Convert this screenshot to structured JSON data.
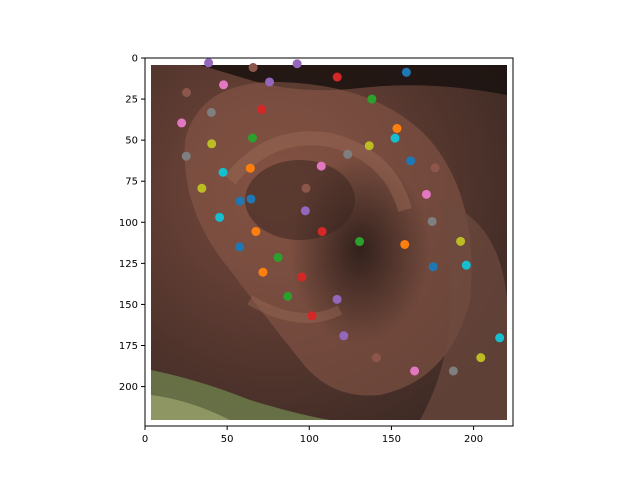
{
  "chart_data": {
    "type": "scatter",
    "xlim": [
      0,
      224
    ],
    "ylim": [
      224,
      0
    ],
    "x_ticks": [
      0,
      50,
      100,
      150,
      200
    ],
    "y_ticks": [
      0,
      25,
      50,
      75,
      100,
      125,
      150,
      175,
      200
    ],
    "grid": false,
    "legend": "none",
    "background_image": "ear-photo",
    "points": [
      {
        "x": 38.7,
        "y": 2.9,
        "color": "#9467bd"
      },
      {
        "x": 65.8,
        "y": 5.8,
        "color": "#8c564b"
      },
      {
        "x": 92.6,
        "y": 3.5,
        "color": "#9467bd"
      },
      {
        "x": 117.0,
        "y": 11.6,
        "color": "#d62728"
      },
      {
        "x": 159.1,
        "y": 8.7,
        "color": "#1f77b4"
      },
      {
        "x": 25.3,
        "y": 21.0,
        "color": "#8c564b"
      },
      {
        "x": 47.8,
        "y": 16.3,
        "color": "#e377c2"
      },
      {
        "x": 75.8,
        "y": 14.6,
        "color": "#9467bd"
      },
      {
        "x": 138.1,
        "y": 25.0,
        "color": "#2ca02c"
      },
      {
        "x": 71.0,
        "y": 31.3,
        "color": "#d62728"
      },
      {
        "x": 40.4,
        "y": 33.1,
        "color": "#7f7f7f"
      },
      {
        "x": 22.3,
        "y": 39.5,
        "color": "#e377c2"
      },
      {
        "x": 153.4,
        "y": 42.9,
        "color": "#ff7f0e"
      },
      {
        "x": 65.4,
        "y": 48.7,
        "color": "#2ca02c"
      },
      {
        "x": 152.2,
        "y": 48.8,
        "color": "#17becf"
      },
      {
        "x": 40.6,
        "y": 52.2,
        "color": "#bcbd22"
      },
      {
        "x": 136.5,
        "y": 53.4,
        "color": "#bcbd22"
      },
      {
        "x": 123.4,
        "y": 58.6,
        "color": "#7f7f7f"
      },
      {
        "x": 25.1,
        "y": 59.8,
        "color": "#7f7f7f"
      },
      {
        "x": 161.7,
        "y": 62.6,
        "color": "#1f77b4"
      },
      {
        "x": 107.3,
        "y": 65.8,
        "color": "#e377c2"
      },
      {
        "x": 64.1,
        "y": 67.1,
        "color": "#ff7f0e"
      },
      {
        "x": 176.6,
        "y": 66.9,
        "color": "#8c564b"
      },
      {
        "x": 47.5,
        "y": 69.6,
        "color": "#17becf"
      },
      {
        "x": 34.6,
        "y": 79.3,
        "color": "#bcbd22"
      },
      {
        "x": 98.0,
        "y": 79.3,
        "color": "#8c564b"
      },
      {
        "x": 171.3,
        "y": 83.0,
        "color": "#e377c2"
      },
      {
        "x": 64.5,
        "y": 85.8,
        "color": "#1f77b4"
      },
      {
        "x": 57.9,
        "y": 87.1,
        "color": "#1f77b4"
      },
      {
        "x": 97.6,
        "y": 93.0,
        "color": "#9467bd"
      },
      {
        "x": 45.4,
        "y": 97.0,
        "color": "#17becf"
      },
      {
        "x": 174.8,
        "y": 99.5,
        "color": "#7f7f7f"
      },
      {
        "x": 67.5,
        "y": 105.6,
        "color": "#ff7f0e"
      },
      {
        "x": 107.8,
        "y": 105.6,
        "color": "#d62728"
      },
      {
        "x": 130.6,
        "y": 111.7,
        "color": "#2ca02c"
      },
      {
        "x": 192.1,
        "y": 111.6,
        "color": "#bcbd22"
      },
      {
        "x": 158.1,
        "y": 113.5,
        "color": "#ff7f0e"
      },
      {
        "x": 57.7,
        "y": 115.0,
        "color": "#1f77b4"
      },
      {
        "x": 81.0,
        "y": 121.4,
        "color": "#2ca02c"
      },
      {
        "x": 195.6,
        "y": 126.1,
        "color": "#17becf"
      },
      {
        "x": 175.4,
        "y": 127.1,
        "color": "#1f77b4"
      },
      {
        "x": 71.8,
        "y": 130.4,
        "color": "#ff7f0e"
      },
      {
        "x": 95.5,
        "y": 133.3,
        "color": "#d62728"
      },
      {
        "x": 86.9,
        "y": 145.1,
        "color": "#2ca02c"
      },
      {
        "x": 116.9,
        "y": 146.9,
        "color": "#9467bd"
      },
      {
        "x": 101.7,
        "y": 156.9,
        "color": "#d62728"
      },
      {
        "x": 121.0,
        "y": 169.1,
        "color": "#9467bd"
      },
      {
        "x": 215.9,
        "y": 170.3,
        "color": "#17becf"
      },
      {
        "x": 140.9,
        "y": 182.4,
        "color": "#8c564b"
      },
      {
        "x": 204.4,
        "y": 182.4,
        "color": "#bcbd22"
      },
      {
        "x": 164.1,
        "y": 190.5,
        "color": "#e377c2"
      },
      {
        "x": 187.7,
        "y": 190.5,
        "color": "#7f7f7f"
      }
    ]
  }
}
